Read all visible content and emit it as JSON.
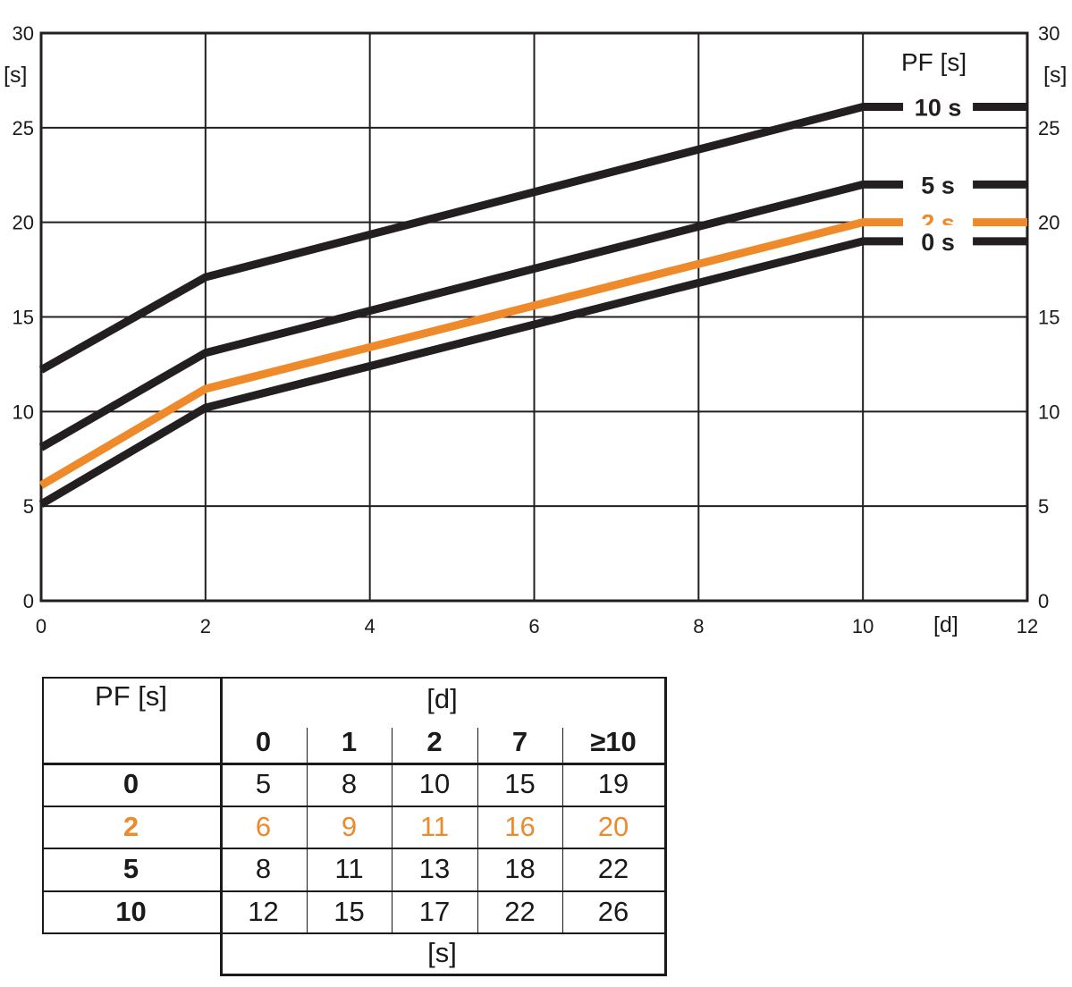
{
  "chart_data": {
    "type": "line",
    "xlabel": "[d]",
    "ylabel": "[s]",
    "ylabel_right": "[s]",
    "legend_title": "PF [s]",
    "xlim": [
      0,
      12
    ],
    "ylim": [
      0,
      30
    ],
    "x_ticks": [
      0,
      2,
      4,
      6,
      8,
      10,
      12
    ],
    "y_ticks": [
      0,
      5,
      10,
      15,
      20,
      25,
      30
    ],
    "grid": true,
    "series": [
      {
        "name": "10 s",
        "color": "#231f20",
        "points": [
          [
            0,
            12.2
          ],
          [
            2,
            17.1
          ],
          [
            10,
            26.1
          ],
          [
            12,
            26.1
          ]
        ]
      },
      {
        "name": "5 s",
        "color": "#231f20",
        "points": [
          [
            0,
            8.1
          ],
          [
            2,
            13.1
          ],
          [
            10,
            22
          ],
          [
            12,
            22
          ]
        ]
      },
      {
        "name": "2 s",
        "color": "#ef8a2a",
        "points": [
          [
            0,
            6.1
          ],
          [
            2,
            11.2
          ],
          [
            10,
            20
          ],
          [
            12,
            20
          ]
        ]
      },
      {
        "name": "0 s",
        "color": "#231f20",
        "points": [
          [
            0,
            5.1
          ],
          [
            2,
            10.2
          ],
          [
            10,
            19
          ],
          [
            12,
            19
          ]
        ]
      }
    ]
  },
  "table": {
    "pf_header": "PF [s]",
    "days_header": "[d]",
    "day_columns": [
      "0",
      "1",
      "2",
      "7",
      "≥10"
    ],
    "unit_footer": "[s]",
    "rows": [
      {
        "pf": "0",
        "values": [
          "5",
          "8",
          "10",
          "15",
          "19"
        ],
        "highlight": false
      },
      {
        "pf": "2",
        "values": [
          "6",
          "9",
          "11",
          "16",
          "20"
        ],
        "highlight": true
      },
      {
        "pf": "5",
        "values": [
          "8",
          "11",
          "13",
          "18",
          "22"
        ],
        "highlight": false
      },
      {
        "pf": "10",
        "values": [
          "12",
          "15",
          "17",
          "22",
          "26"
        ],
        "highlight": false
      }
    ]
  }
}
